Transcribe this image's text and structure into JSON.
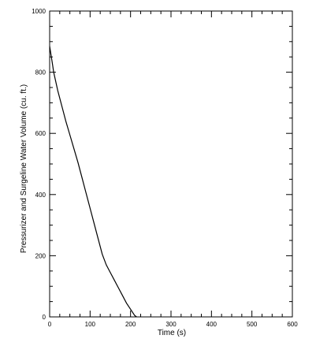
{
  "chart_data": {
    "type": "line",
    "title": "",
    "xlabel": "Time  (s)",
    "ylabel": "Pressurizer and Surgeline Water Volume (cu. ft.)",
    "xlim": [
      0,
      600
    ],
    "ylim": [
      0,
      1000
    ],
    "x_ticks": [
      0,
      100,
      200,
      300,
      400,
      500,
      600
    ],
    "y_ticks": [
      0,
      200,
      400,
      600,
      800,
      1000
    ],
    "x_tick_labels": [
      "0",
      "100",
      "200",
      "300",
      "400",
      "500",
      "600"
    ],
    "y_tick_labels": [
      "0",
      "200",
      "400",
      "600",
      "800",
      "1000"
    ],
    "grid": false,
    "legend": "none",
    "line_color": "#000000",
    "series": [
      {
        "x": [
          0,
          3,
          6,
          10,
          20,
          30,
          40,
          50,
          60,
          70,
          80,
          90,
          100,
          110,
          120,
          130,
          140,
          150,
          160,
          170,
          180,
          190,
          200,
          210,
          215
        ],
        "y": [
          885,
          860,
          835,
          800,
          740,
          690,
          640,
          595,
          550,
          505,
          455,
          405,
          355,
          305,
          255,
          205,
          170,
          145,
          120,
          95,
          70,
          45,
          25,
          5,
          0
        ]
      }
    ]
  }
}
